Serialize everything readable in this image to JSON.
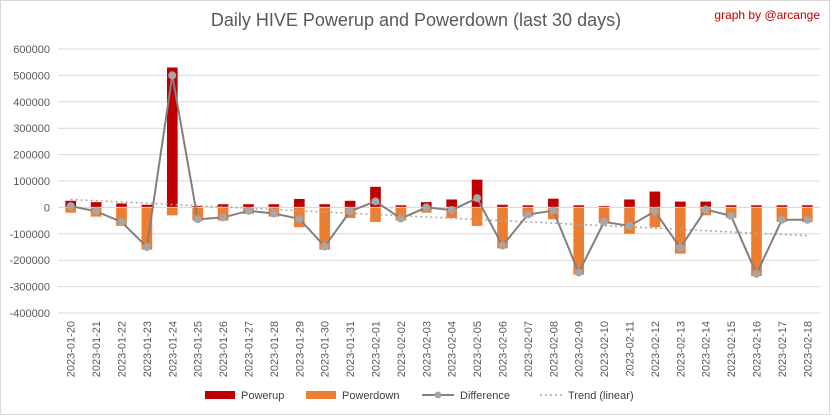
{
  "chart_data": {
    "type": "bar",
    "title": "Daily HIVE Powerup and Powerdown (last 30 days)",
    "credit": "graph by @arcange",
    "categories": [
      "2023-01-20",
      "2023-01-21",
      "2023-01-22",
      "2023-01-23",
      "2023-01-24",
      "2023-01-25",
      "2023-01-26",
      "2023-01-27",
      "2023-01-28",
      "2023-01-29",
      "2023-01-30",
      "2023-01-31",
      "2023-02-01",
      "2023-02-02",
      "2023-02-03",
      "2023-02-04",
      "2023-02-05",
      "2023-02-06",
      "2023-02-07",
      "2023-02-08",
      "2023-02-09",
      "2023-02-10",
      "2023-02-11",
      "2023-02-12",
      "2023-02-13",
      "2023-02-14",
      "2023-02-15",
      "2023-02-16",
      "2023-02-17",
      "2023-02-18"
    ],
    "ylim": [
      -400000,
      600000
    ],
    "yticks": [
      600000,
      500000,
      400000,
      300000,
      200000,
      100000,
      0,
      -100000,
      -200000,
      -300000,
      -400000
    ],
    "ytick_labels": [
      "600000",
      "500000",
      "400000",
      "300000",
      "200000",
      "100000",
      "0",
      "-100000",
      "-200000",
      "-300000",
      "-400000"
    ],
    "grid": true,
    "legend_position": "bottom",
    "series": [
      {
        "name": "Powerup",
        "kind": "bar",
        "color": "#c00000",
        "values": [
          25000,
          20000,
          15000,
          10000,
          530000,
          5000,
          12000,
          12000,
          12000,
          32000,
          12000,
          25000,
          78000,
          8000,
          20000,
          30000,
          105000,
          10000,
          8000,
          33000,
          8000,
          5000,
          30000,
          60000,
          22000,
          22000,
          8000,
          8000,
          8000,
          8000
        ]
      },
      {
        "name": "Powerdown",
        "kind": "bar",
        "color": "#ed7d31",
        "values": [
          -20000,
          -35000,
          -70000,
          -160000,
          -30000,
          -50000,
          -50000,
          -25000,
          -35000,
          -75000,
          -160000,
          -40000,
          -55000,
          -50000,
          -20000,
          -40000,
          -70000,
          -155000,
          -35000,
          -45000,
          -255000,
          -60000,
          -100000,
          -75000,
          -175000,
          -30000,
          -40000,
          -260000,
          -55000,
          -55000
        ]
      },
      {
        "name": "Difference",
        "kind": "line",
        "color": "#808080",
        "values": [
          5000,
          -15000,
          -55000,
          -150000,
          500000,
          -45000,
          -38000,
          -13000,
          -23000,
          -43000,
          -148000,
          -15000,
          23000,
          -42000,
          0,
          -10000,
          35000,
          -145000,
          -27000,
          -12000,
          -247000,
          -55000,
          -70000,
          -15000,
          -153000,
          -8000,
          -32000,
          -252000,
          -47000,
          -47000
        ]
      },
      {
        "name": "Trend (linear)",
        "kind": "trend",
        "color": "#a6a6a6",
        "start": 30000,
        "end": -107000
      }
    ]
  }
}
